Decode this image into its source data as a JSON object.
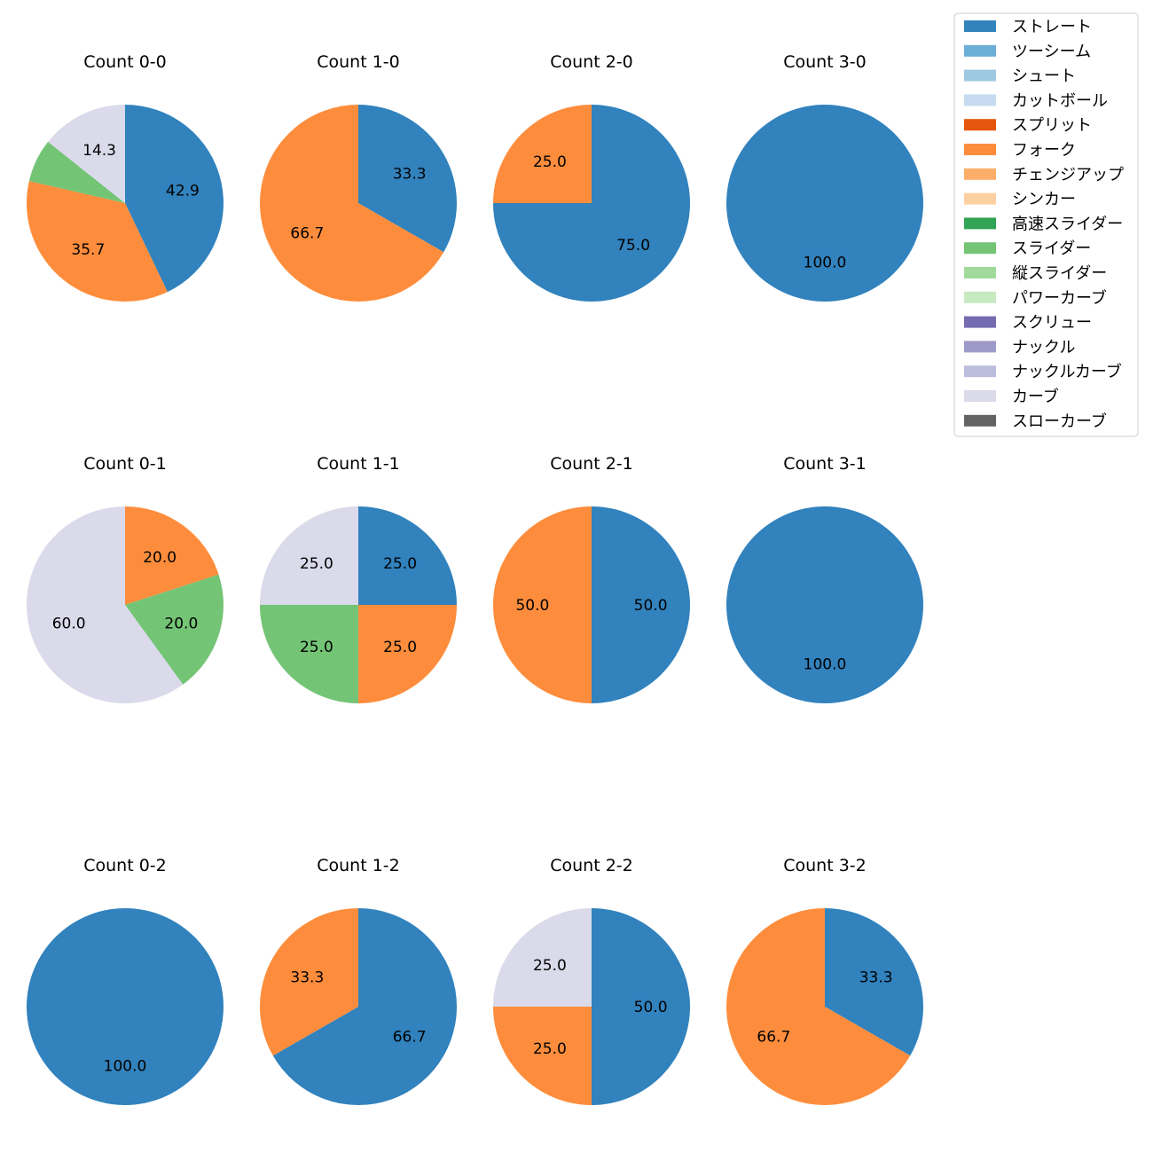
{
  "colors": {
    "ストレート": "#3182bd",
    "ツーシーム": "#6baed6",
    "シュート": "#9ecae1",
    "カットボール": "#c6dbef",
    "スプリット": "#e6550d",
    "フォーク": "#fd8d3c",
    "チェンジアップ": "#fdae6b",
    "シンカー": "#fdd0a2",
    "高速スライダー": "#31a354",
    "スライダー": "#74c476",
    "縦スライダー": "#a1d99b",
    "パワーカーブ": "#c7e9c0",
    "スクリュー": "#756bb1",
    "ナックル": "#9e9ac8",
    "ナックルカーブ": "#bcbddc",
    "カーブ": "#dadaeb",
    "スローカーブ": "#636363"
  },
  "chart_data": {
    "type": "pie",
    "legend_position": "top-right",
    "legend": [
      "ストレート",
      "ツーシーム",
      "シュート",
      "カットボール",
      "スプリット",
      "フォーク",
      "チェンジアップ",
      "シンカー",
      "高速スライダー",
      "スライダー",
      "縦スライダー",
      "パワーカーブ",
      "スクリュー",
      "ナックル",
      "ナックルカーブ",
      "カーブ",
      "スローカーブ"
    ],
    "charts": [
      {
        "title": "Count 0-0",
        "slices": [
          {
            "category": "ストレート",
            "value": 42.9,
            "label": "42.9"
          },
          {
            "category": "フォーク",
            "value": 35.7,
            "label": "35.7"
          },
          {
            "category": "スライダー",
            "value": 7.1,
            "label": ""
          },
          {
            "category": "カーブ",
            "value": 14.3,
            "label": "14.3"
          }
        ]
      },
      {
        "title": "Count 1-0",
        "slices": [
          {
            "category": "ストレート",
            "value": 33.3,
            "label": "33.3"
          },
          {
            "category": "フォーク",
            "value": 66.7,
            "label": "66.7"
          }
        ]
      },
      {
        "title": "Count 2-0",
        "slices": [
          {
            "category": "ストレート",
            "value": 75.0,
            "label": "75.0"
          },
          {
            "category": "フォーク",
            "value": 25.0,
            "label": "25.0"
          }
        ]
      },
      {
        "title": "Count 3-0",
        "slices": [
          {
            "category": "ストレート",
            "value": 100.0,
            "label": "100.0"
          }
        ]
      },
      {
        "title": "Count 0-1",
        "slices": [
          {
            "category": "フォーク",
            "value": 20.0,
            "label": "20.0"
          },
          {
            "category": "スライダー",
            "value": 20.0,
            "label": "20.0"
          },
          {
            "category": "カーブ",
            "value": 60.0,
            "label": "60.0"
          }
        ]
      },
      {
        "title": "Count 1-1",
        "slices": [
          {
            "category": "ストレート",
            "value": 25.0,
            "label": "25.0"
          },
          {
            "category": "フォーク",
            "value": 25.0,
            "label": "25.0"
          },
          {
            "category": "スライダー",
            "value": 25.0,
            "label": "25.0"
          },
          {
            "category": "カーブ",
            "value": 25.0,
            "label": "25.0"
          }
        ]
      },
      {
        "title": "Count 2-1",
        "slices": [
          {
            "category": "ストレート",
            "value": 50.0,
            "label": "50.0"
          },
          {
            "category": "フォーク",
            "value": 50.0,
            "label": "50.0"
          }
        ]
      },
      {
        "title": "Count 3-1",
        "slices": [
          {
            "category": "ストレート",
            "value": 100.0,
            "label": "100.0"
          }
        ]
      },
      {
        "title": "Count 0-2",
        "slices": [
          {
            "category": "ストレート",
            "value": 100.0,
            "label": "100.0"
          }
        ]
      },
      {
        "title": "Count 1-2",
        "slices": [
          {
            "category": "ストレート",
            "value": 66.7,
            "label": "66.7"
          },
          {
            "category": "フォーク",
            "value": 33.3,
            "label": "33.3"
          }
        ]
      },
      {
        "title": "Count 2-2",
        "slices": [
          {
            "category": "ストレート",
            "value": 50.0,
            "label": "50.0"
          },
          {
            "category": "フォーク",
            "value": 25.0,
            "label": "25.0"
          },
          {
            "category": "カーブ",
            "value": 25.0,
            "label": "25.0"
          }
        ]
      },
      {
        "title": "Count 3-2",
        "slices": [
          {
            "category": "ストレート",
            "value": 33.3,
            "label": "33.3"
          },
          {
            "category": "フォーク",
            "value": 66.7,
            "label": "66.7"
          }
        ]
      }
    ]
  }
}
